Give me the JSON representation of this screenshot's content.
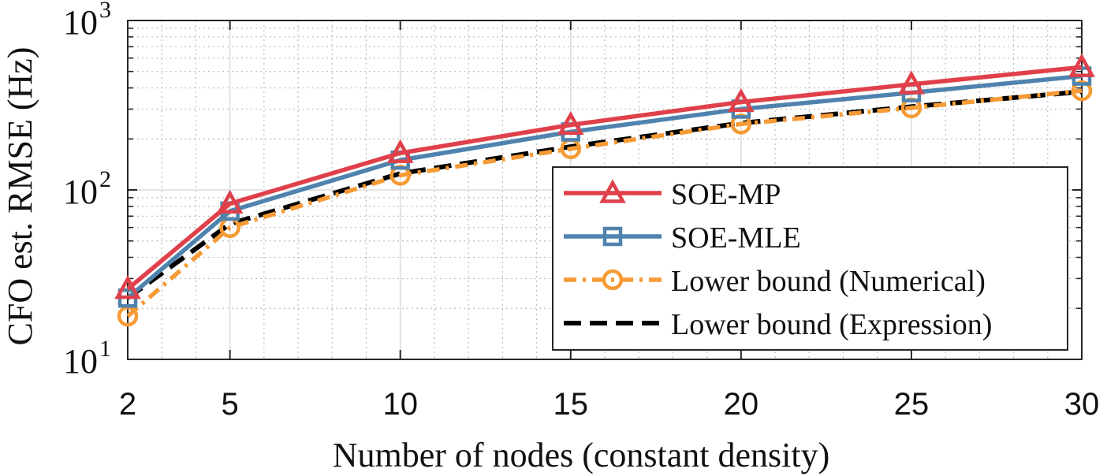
{
  "chart_data": {
    "type": "line",
    "x_scale": "linear",
    "y_scale": "log",
    "xlabel": "Number of nodes (constant density)",
    "ylabel": "CFO est. RMSE (Hz)",
    "xlim": [
      2,
      30
    ],
    "ylim": [
      10,
      1000
    ],
    "x_ticks": [
      2,
      5,
      10,
      15,
      20,
      25,
      30
    ],
    "x_tick_labels": [
      "2",
      "5",
      "10",
      "15",
      "20",
      "25",
      "30"
    ],
    "y_ticks": [
      10,
      100,
      1000
    ],
    "y_tick_labels": [
      {
        "base": "10",
        "exp": "1"
      },
      {
        "base": "10",
        "exp": "2"
      },
      {
        "base": "10",
        "exp": "3"
      }
    ],
    "grid": true,
    "minor_grid": true,
    "legend_position": "lower-right",
    "x": [
      2,
      5,
      10,
      15,
      20,
      25,
      30
    ],
    "series": [
      {
        "name": "SOE-MP",
        "color": "#e0404a",
        "marker": "triangle",
        "line_style": "solid",
        "values": [
          26,
          83,
          165,
          242,
          330,
          420,
          530
        ]
      },
      {
        "name": "SOE-MLE",
        "color": "#4f83ae",
        "marker": "square",
        "line_style": "solid",
        "values": [
          23,
          75,
          150,
          220,
          300,
          375,
          470
        ]
      },
      {
        "name": "Lower bound (Numerical)",
        "color": "#f59a35",
        "marker": "circle",
        "line_style": "dashdot",
        "values": [
          18,
          60,
          122,
          175,
          245,
          305,
          385
        ]
      },
      {
        "name": "Lower bound (Expression)",
        "color": "#000000",
        "marker": "none",
        "line_style": "dashed",
        "values": [
          23,
          63,
          125,
          180,
          248,
          310,
          380
        ]
      }
    ]
  }
}
